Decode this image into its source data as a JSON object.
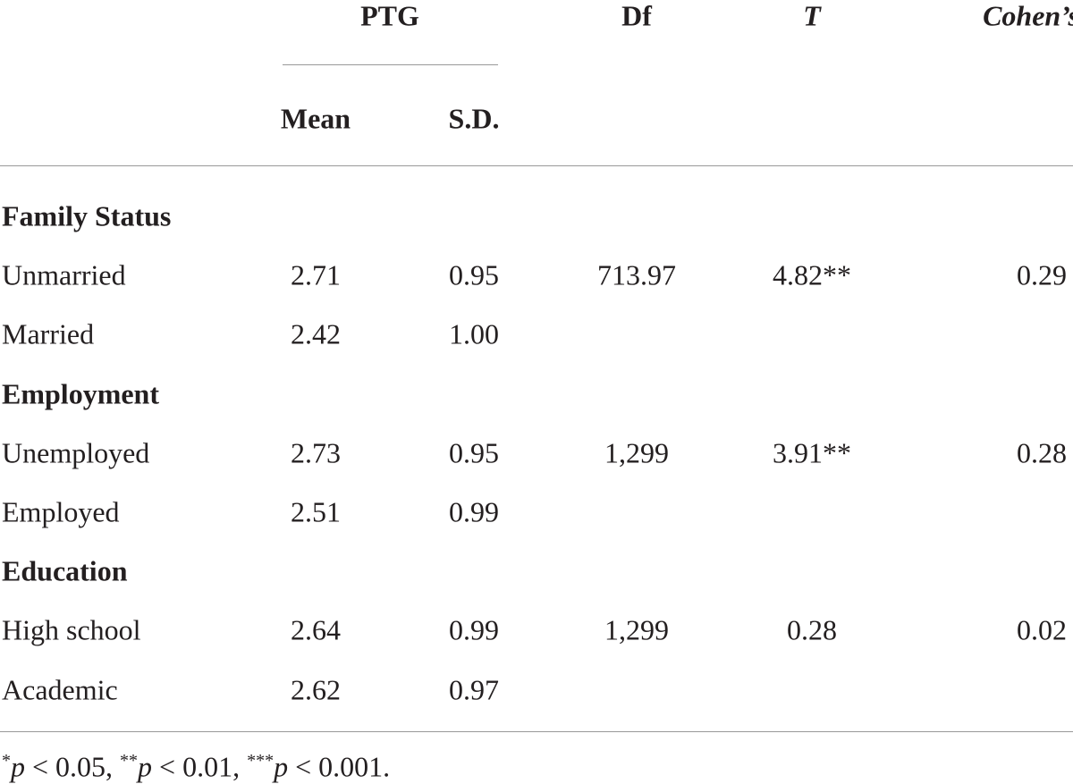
{
  "table": {
    "header": {
      "group": "PTG",
      "columns": [
        "Df",
        "T",
        "Cohen’s d"
      ],
      "subcolumns": [
        "Mean",
        "S.D."
      ]
    },
    "sections": [
      {
        "title": "Family Status",
        "rows": [
          [
            "Unmarried",
            "2.71",
            "0.95",
            "713.97",
            "4.82**",
            "0.29"
          ],
          [
            "Married",
            "2.42",
            "1.00"
          ]
        ]
      },
      {
        "title": "Employment",
        "rows": [
          [
            "Unemployed",
            "2.73",
            "0.95",
            "1,299",
            "3.91**",
            "0.28"
          ],
          [
            "Employed",
            "2.51",
            "0.99"
          ]
        ]
      },
      {
        "title": "Education",
        "rows": [
          [
            "High school",
            "2.64",
            "0.99",
            "1,299",
            "0.28",
            "0.02"
          ],
          [
            "Academic",
            "2.62",
            "0.97"
          ]
        ]
      }
    ]
  },
  "footnote": [
    "*",
    "p",
    " < 0.05, ",
    "**",
    "p",
    " < 0.01, ",
    "***",
    "p",
    " < 0.001."
  ]
}
